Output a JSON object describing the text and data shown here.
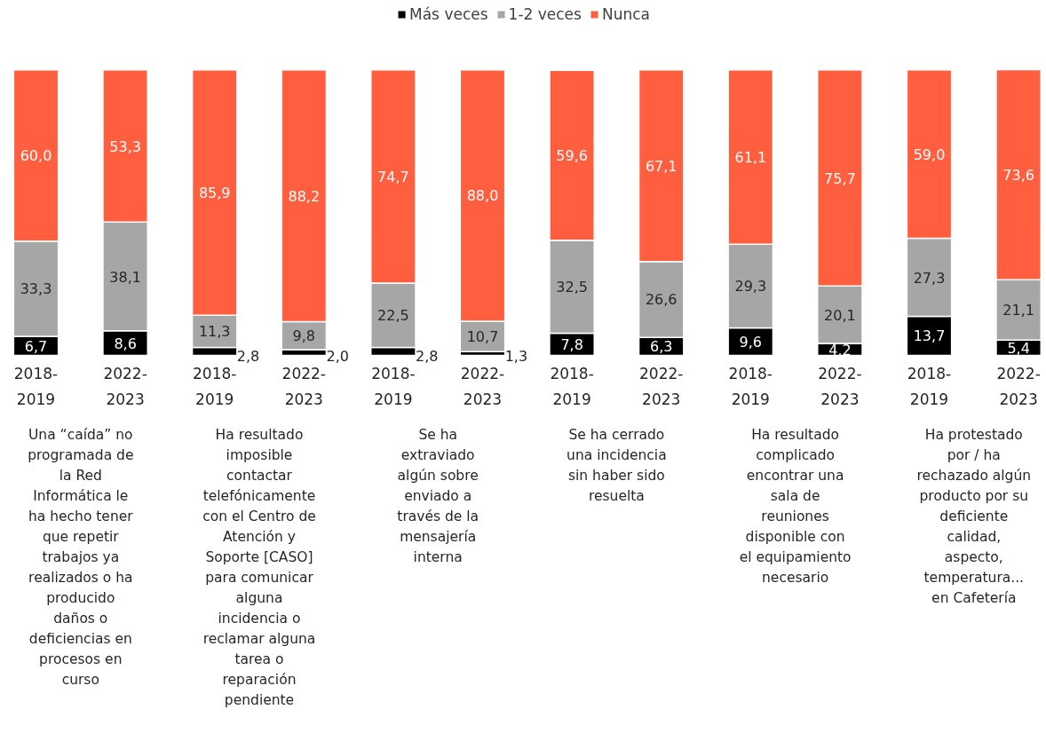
{
  "chart_data": {
    "type": "bar",
    "stacked": true,
    "legend": "top",
    "grid": false,
    "categories": [
      "2018-2019",
      "2022-2023",
      "2018-2019",
      "2022-2023",
      "2018-2019",
      "2022-2023",
      "2018-2019",
      "2022-2023",
      "2018-2019",
      "2022-2023",
      "2018-2019",
      "2022-2023"
    ],
    "series": [
      {
        "name": "Más veces",
        "color": "#000000",
        "values": [
          6.7,
          8.6,
          2.8,
          2.0,
          2.8,
          1.3,
          7.8,
          6.3,
          9.6,
          4.2,
          13.7,
          5.4
        ],
        "value_labels": [
          "6,7",
          "8,6",
          "2,8",
          "2,0",
          "2,8",
          "1,3",
          "7,8",
          "6,3",
          "9,6",
          "4,2",
          "13,7",
          "5,4"
        ]
      },
      {
        "name": "1-2 veces",
        "color": "#a6a6a6",
        "values": [
          33.3,
          38.1,
          11.3,
          9.8,
          22.5,
          10.7,
          32.5,
          26.6,
          29.3,
          20.1,
          27.3,
          21.1
        ],
        "value_labels": [
          "33,3",
          "38,1",
          "11,3",
          "9,8",
          "22,5",
          "10,7",
          "32,5",
          "26,6",
          "29,3",
          "20,1",
          "27,3",
          "21,1"
        ]
      },
      {
        "name": "Nunca",
        "color": "#ff5f3f",
        "values": [
          60.0,
          53.3,
          85.9,
          88.2,
          74.7,
          88.0,
          59.6,
          67.1,
          61.1,
          75.7,
          59.0,
          73.6
        ],
        "value_labels": [
          "60,0",
          "53,3",
          "85,9",
          "88,2",
          "74,7",
          "88,0",
          "59,6",
          "67,1",
          "61,1",
          "75,7",
          "59,0",
          "73,6"
        ]
      }
    ],
    "annotations": [
      "Una “caída” no\nprogramada de\nla Red\nInformática le\nha hecho tener\nque repetir\ntrabajos ya\nrealizados o ha\nproducido\ndaños o\ndeficiencias en\nprocesos en\ncurso",
      "Ha resultado\nimposible\ncontactar\ntelefónicamente\ncon el Centro de\nAtención y\nSoporte [CASO]\npara comunicar\nalguna\nincidencia o\nreclamar alguna\ntarea o\nreparación\npendiente",
      "Se ha\nextraviado\nalgún sobre\nenviado a\ntravés de la\nmensajería\ninterna",
      "Se ha cerrado\nuna incidencia\nsin haber sido\nresuelta",
      "Ha resultado\ncomplicado\nencontrar una\nsala de\nreuniones\ndisponible con\nel equipamiento\nnecesario",
      "Ha protestado\npor / ha\nrechazado algún\nproducto por su\ndeficiente\ncalidad,\naspecto,\ntemperatura...\nen Cafetería"
    ]
  }
}
